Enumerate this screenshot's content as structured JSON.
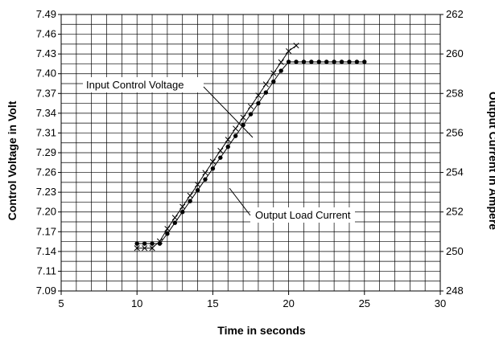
{
  "chart_data": {
    "type": "line",
    "xlabel": "Time in seconds",
    "ylabel": "Control Voltage in Volt",
    "y2label": "Output Current in Ampere",
    "xlim": [
      5,
      30
    ],
    "ylim": [
      7.09,
      7.49
    ],
    "y2lim": [
      248,
      262
    ],
    "x_ticks": [
      "5",
      "10",
      "15",
      "20",
      "25",
      "30"
    ],
    "y_ticks": [
      "7.09",
      "7.11",
      "7.14",
      "7.17",
      "7.20",
      "7.23",
      "7.26",
      "7.29",
      "7.31",
      "7.34",
      "7.37",
      "7.40",
      "7.43",
      "7.46",
      "7.49"
    ],
    "y2_ticks": [
      "248",
      "250",
      "252",
      "254",
      "256",
      "258",
      "260",
      "262"
    ],
    "grid": true,
    "series": [
      {
        "name": "Input Control Voltage",
        "axis": "left",
        "marker": "x",
        "x": [
          10,
          10.5,
          11,
          11.5,
          12,
          12.5,
          13,
          13.5,
          14,
          14.5,
          15,
          15.5,
          16,
          16.5,
          17,
          17.5,
          18,
          18.5,
          19,
          19.5,
          20,
          20.5
        ],
        "y": [
          7.152,
          7.152,
          7.152,
          7.162,
          7.18,
          7.196,
          7.212,
          7.228,
          7.244,
          7.261,
          7.277,
          7.293,
          7.309,
          7.325,
          7.341,
          7.357,
          7.373,
          7.389,
          7.405,
          7.421,
          7.437,
          7.445
        ]
      },
      {
        "name": "Output Load Current",
        "axis": "right",
        "marker": "circle",
        "x": [
          10,
          10.5,
          11,
          11.5,
          12,
          12.5,
          13,
          13.5,
          14,
          14.5,
          15,
          15.5,
          16,
          16.5,
          17,
          17.5,
          18,
          18.5,
          19,
          19.5,
          20,
          20.5,
          21,
          21.5,
          22,
          22.5,
          23,
          23.5,
          24,
          24.5,
          25
        ],
        "y": [
          250.4,
          250.4,
          250.4,
          250.4,
          250.9,
          251.45,
          252.0,
          252.55,
          253.1,
          253.65,
          254.2,
          254.75,
          255.3,
          255.85,
          256.4,
          256.95,
          257.5,
          258.05,
          258.6,
          259.15,
          259.6,
          259.6,
          259.6,
          259.6,
          259.6,
          259.6,
          259.6,
          259.6,
          259.6,
          259.6,
          259.6
        ]
      }
    ],
    "annotations": [
      "Input Control Voltage",
      "Output Load Current"
    ]
  }
}
